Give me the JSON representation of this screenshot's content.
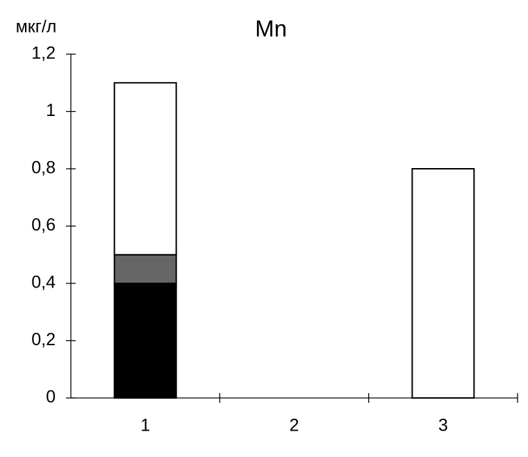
{
  "chart_data": {
    "type": "stacked_bar",
    "title": "Mn",
    "y_label": "мкг/л",
    "categories": [
      "1",
      "2",
      "3"
    ],
    "series": [
      {
        "color": "#000000",
        "values": [
          0.4,
          null,
          null
        ]
      },
      {
        "color": "#666666",
        "values": [
          0.1,
          null,
          null
        ]
      },
      {
        "color": "#ffffff",
        "values": [
          0.6,
          null,
          0.8
        ]
      }
    ],
    "ylim": [
      0,
      1.2
    ],
    "yticks": [
      0,
      {
        "value": 0.2,
        "label": "0,2"
      },
      {
        "value": 0.4,
        "label": "0,4"
      },
      {
        "value": 0.6,
        "label": "0,6"
      },
      {
        "value": 0.8,
        "label": "0,8"
      },
      1,
      {
        "value": 1.2,
        "label": "1,2"
      }
    ],
    "grid": false
  }
}
